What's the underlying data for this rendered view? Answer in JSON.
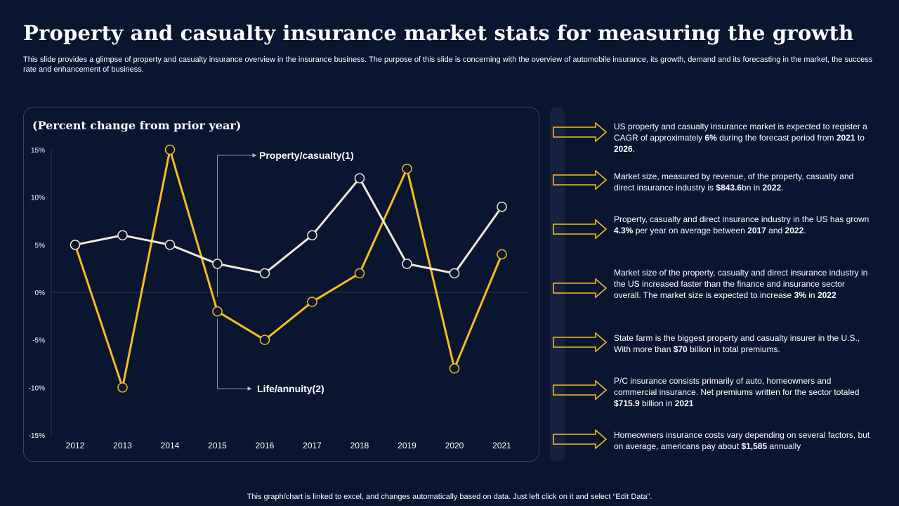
{
  "header": {
    "title": "Property and casualty insurance market stats for measuring the growth",
    "subtitle": "This slide provides a glimpse of property and casualty insurance overview in the insurance business. The purpose of this slide is concerning with the overview of automobile insurance, its growth, demand and its forecasting in the market, the success rate and enhancement of business."
  },
  "chart_data": {
    "type": "line",
    "title": "(Percent change from prior year)",
    "categories": [
      "2012",
      "2013",
      "2014",
      "2015",
      "2016",
      "2017",
      "2018",
      "2019",
      "2020",
      "2021"
    ],
    "series": [
      {
        "name": "Property/casualty(1)",
        "color": "#f2ead8",
        "values": [
          5,
          6,
          5,
          3,
          2,
          6,
          12,
          3,
          2,
          9
        ]
      },
      {
        "name": "Life/annuity(2)",
        "color": "#f5bd1f",
        "values": [
          5,
          -10,
          15,
          -2,
          -5,
          -1,
          2,
          13,
          -8,
          4
        ]
      }
    ],
    "ylim": [
      -15,
      15
    ],
    "yticks": [
      15,
      10,
      5,
      0,
      -5,
      -10,
      -15
    ],
    "ytick_labels": [
      "15%",
      "10%",
      "5%",
      "0%",
      "-5%",
      "-10%",
      "-15%"
    ],
    "xlabel": "",
    "ylabel": ""
  },
  "stats": [
    {
      "parts": [
        [
          "US property and casualty insurance  market is expected to register a CAGR of approximately ",
          false
        ],
        [
          "6%",
          true
        ],
        [
          "  during the forecast period from  ",
          false
        ],
        [
          "2021",
          true
        ],
        [
          " to ",
          false
        ],
        [
          "2026",
          true
        ],
        [
          ".",
          false
        ]
      ]
    },
    {
      "parts": [
        [
          "Market size, measured  by revenue,  of the property, casualty and direct insurance industry is ",
          false
        ],
        [
          "$843.6",
          true
        ],
        [
          "bn  in ",
          false
        ],
        [
          "2022",
          true
        ],
        [
          ".",
          false
        ]
      ]
    },
    {
      "parts": [
        [
          "Property, casualty and direct insurance industry in the US has grown  ",
          false
        ],
        [
          "4.3%",
          true
        ],
        [
          "  per year on average  between  ",
          false
        ],
        [
          "2017",
          true
        ],
        [
          " and ",
          false
        ],
        [
          "2022",
          true
        ],
        [
          ".",
          false
        ]
      ]
    },
    {
      "parts": [
        [
          "Market size of the property, casualty and direct insurance industry in the US increased faster than the finance and insurance sector overall.  The  market size is expected to increase  ",
          false
        ],
        [
          "3%",
          true
        ],
        [
          "  in ",
          false
        ],
        [
          "2022",
          true
        ]
      ]
    },
    {
      "parts": [
        [
          "State farm  is the biggest property  and casualty insurer in the U.S., With more than ",
          false
        ],
        [
          "$70",
          true
        ],
        [
          " billion in total premiums.",
          false
        ]
      ]
    },
    {
      "parts": [
        [
          "P/C insurance consists primarily of auto, homeowners  and commercial insurance. Net premiums written for the sector totaled ",
          false
        ],
        [
          "$715.9",
          true
        ],
        [
          " billion in ",
          false
        ],
        [
          "2021",
          true
        ]
      ]
    },
    {
      "parts": [
        [
          "Homeowners  insurance costs vary  depending  on several factors, but on average,  americans pay about ",
          false
        ],
        [
          "$1,585",
          true
        ],
        [
          "  annually",
          false
        ]
      ]
    }
  ],
  "footer": "This graph/chart is linked to excel,  and changes automatically based on data. Just left click on it and select “Edit Data”.",
  "colors": {
    "background": "#0a1530",
    "accent": "#f5bd1f",
    "line_light": "#f2ead8"
  }
}
